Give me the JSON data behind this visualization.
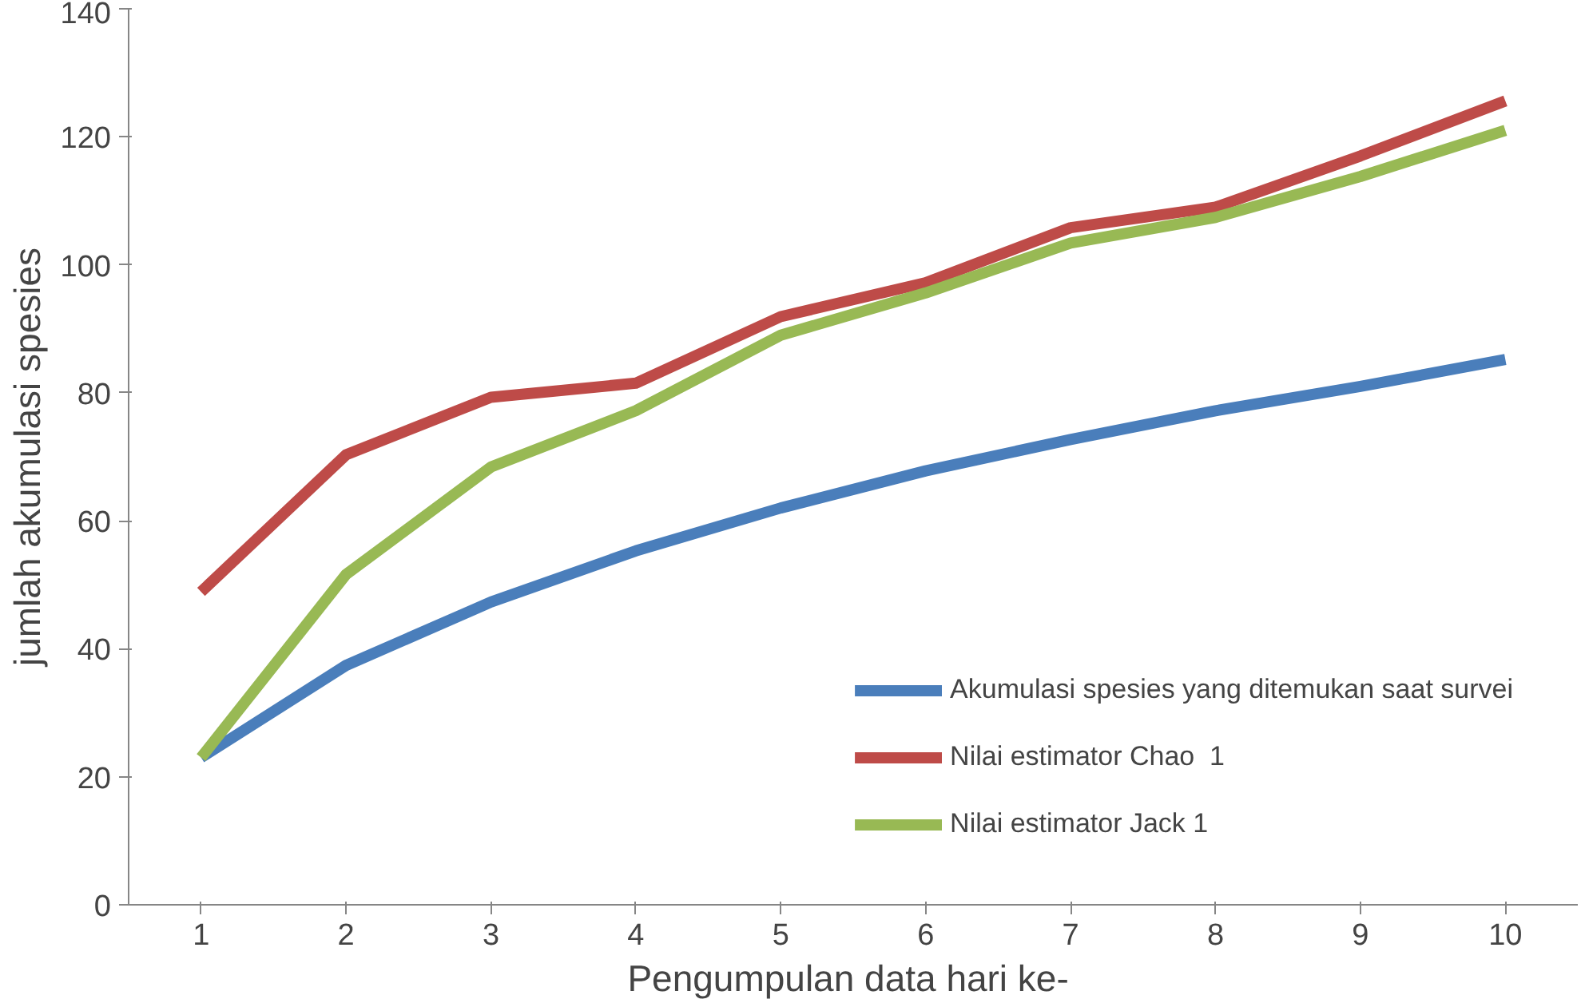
{
  "chart_data": {
    "type": "line",
    "xlabel": "Pengumpulan data  hari ke-",
    "ylabel": "jumlah akumulasi spesies",
    "categories": [
      "1",
      "2",
      "3",
      "4",
      "5",
      "6",
      "7",
      "8",
      "9",
      "10"
    ],
    "ylim": [
      0,
      140
    ],
    "yticks": [
      0,
      20,
      40,
      60,
      80,
      100,
      120,
      140
    ],
    "grid": false,
    "legend": "right",
    "marker": "none",
    "line_style": "solid",
    "series": [
      {
        "name": "Akumulasi spesies yang ditemukan saat survei",
        "color": "#4a7ebb",
        "values": [
          23,
          37.4,
          47.3,
          55.3,
          62,
          67.8,
          72.7,
          77.2,
          81,
          85.2
        ]
      },
      {
        "name": "Nilai estimator Chao  1",
        "color": "#be4b48",
        "values": [
          48.9,
          70.3,
          79.3,
          81.5,
          91.9,
          97.2,
          105.8,
          109,
          117,
          125.6
        ]
      },
      {
        "name": "Nilai estimator Jack 1",
        "color": "#98b954",
        "values": [
          23,
          51.6,
          68.4,
          77.2,
          89,
          95.6,
          103.4,
          107.4,
          113.8,
          121
        ]
      }
    ]
  }
}
